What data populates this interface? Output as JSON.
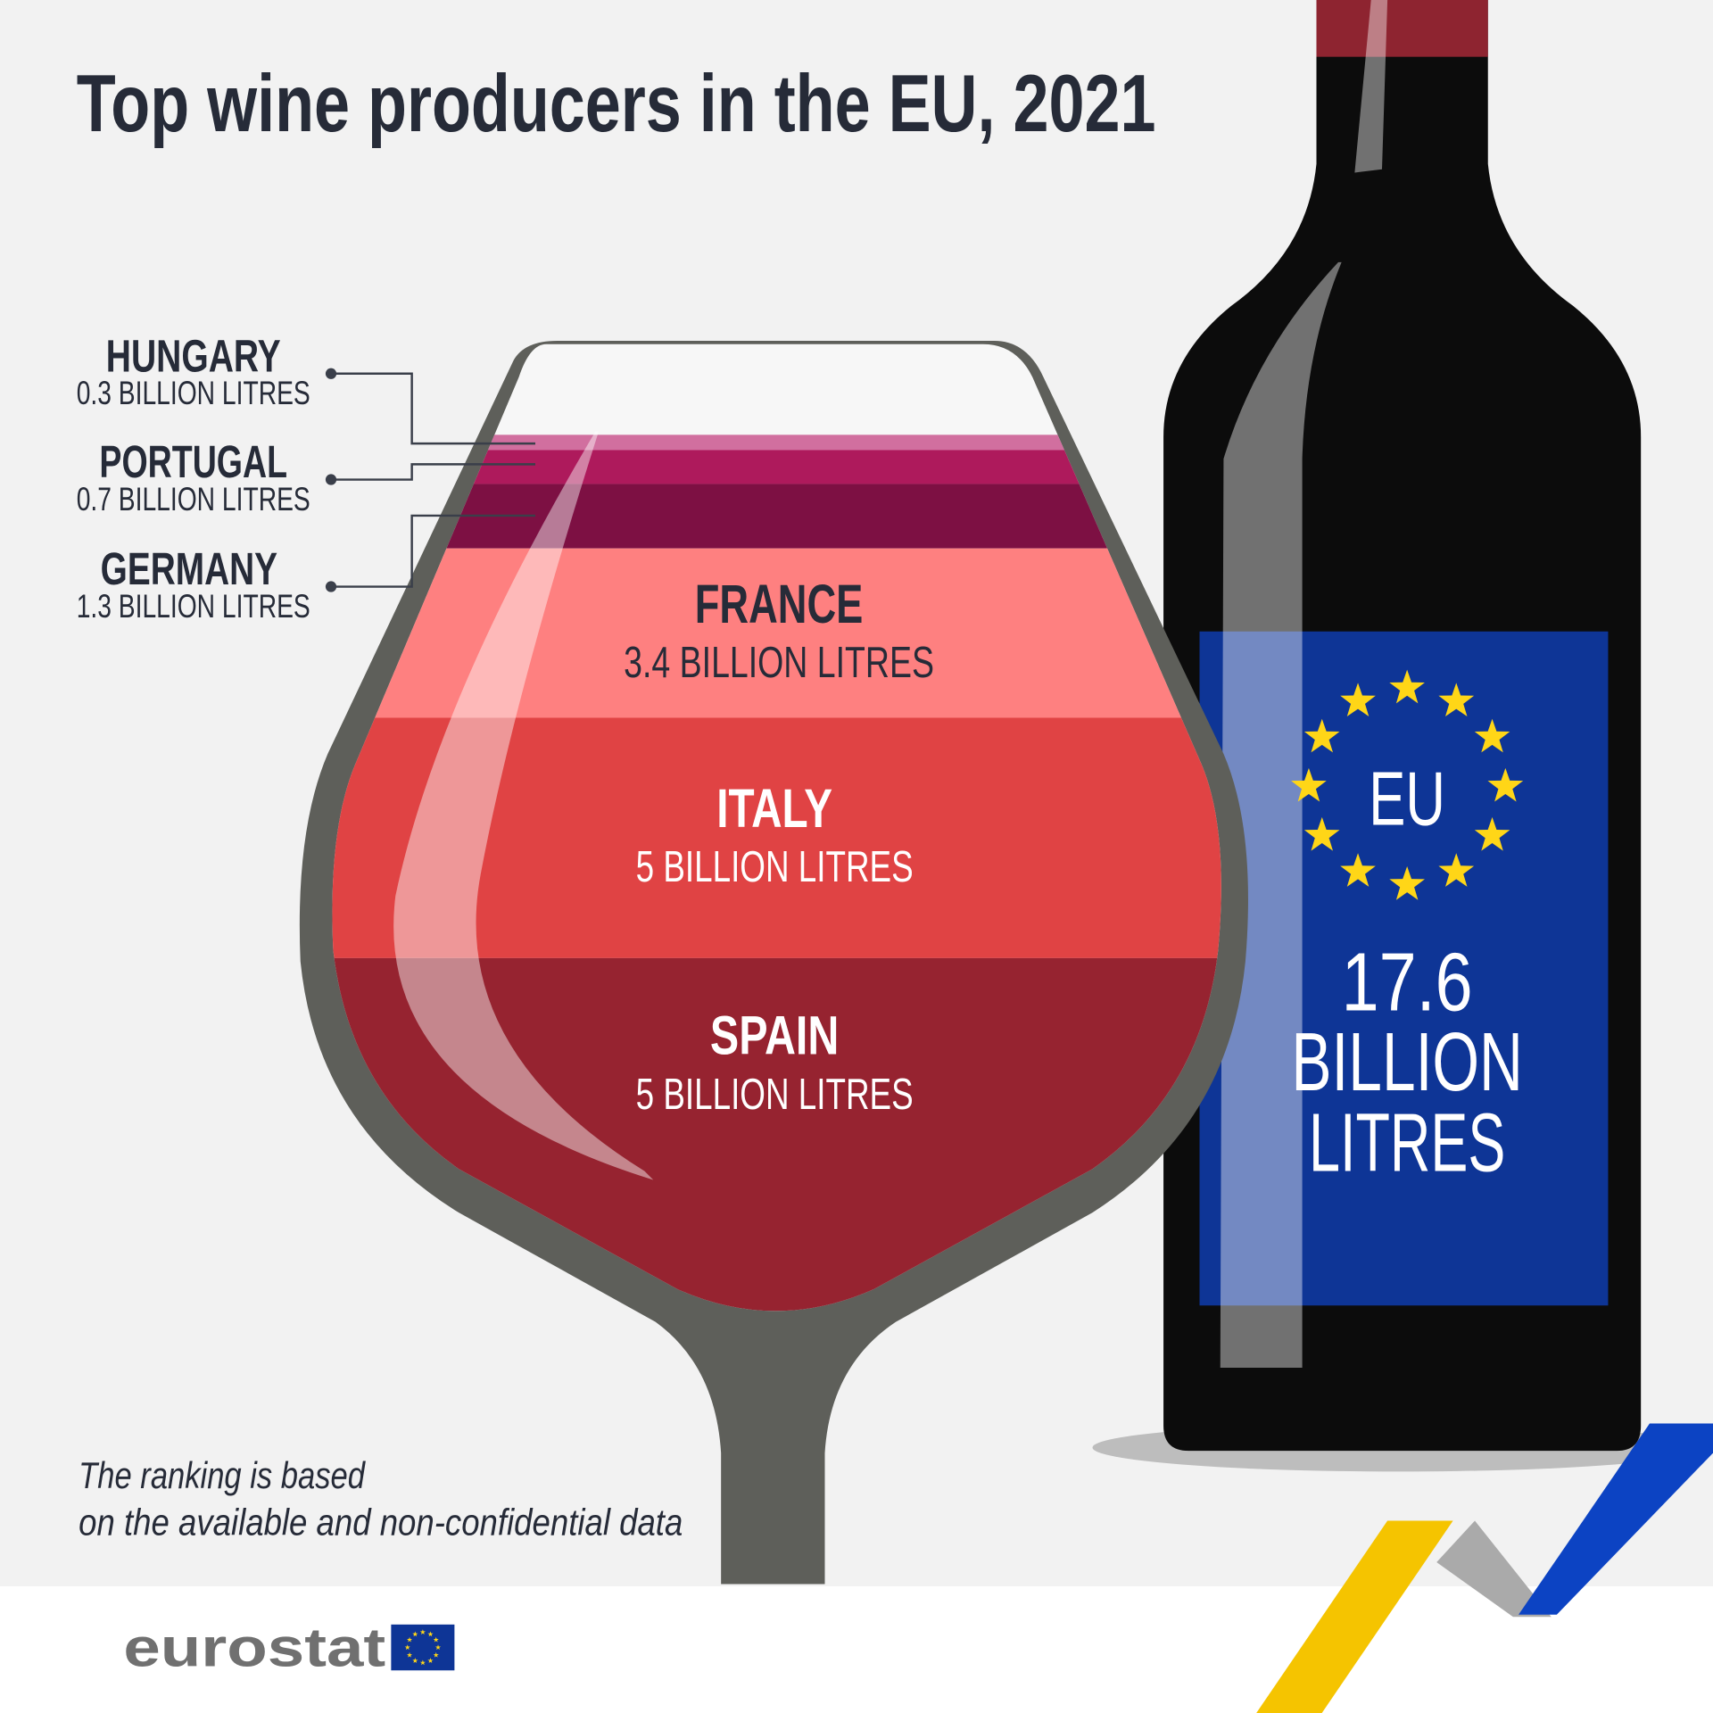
{
  "title": "Top wine producers in the EU, 2021",
  "producers": [
    {
      "name": "HUNGARY",
      "amount": "0.3 BILLION LITRES"
    },
    {
      "name": "PORTUGAL",
      "amount": "0.7 BILLION LITRES"
    },
    {
      "name": "GERMANY",
      "amount": "1.3 BILLION LITRES"
    },
    {
      "name": "FRANCE",
      "amount": "3.4 BILLION LITRES"
    },
    {
      "name": "ITALY",
      "amount": "5 BILLION LITRES"
    },
    {
      "name": "SPAIN",
      "amount": "5 BILLION LITRES"
    }
  ],
  "bottle": {
    "label": "EU",
    "total_lines": [
      "17.6",
      "BILLION",
      "LITRES"
    ]
  },
  "note": [
    "The ranking is based",
    "on the available and non-confidential data"
  ],
  "logo": "eurostat"
}
